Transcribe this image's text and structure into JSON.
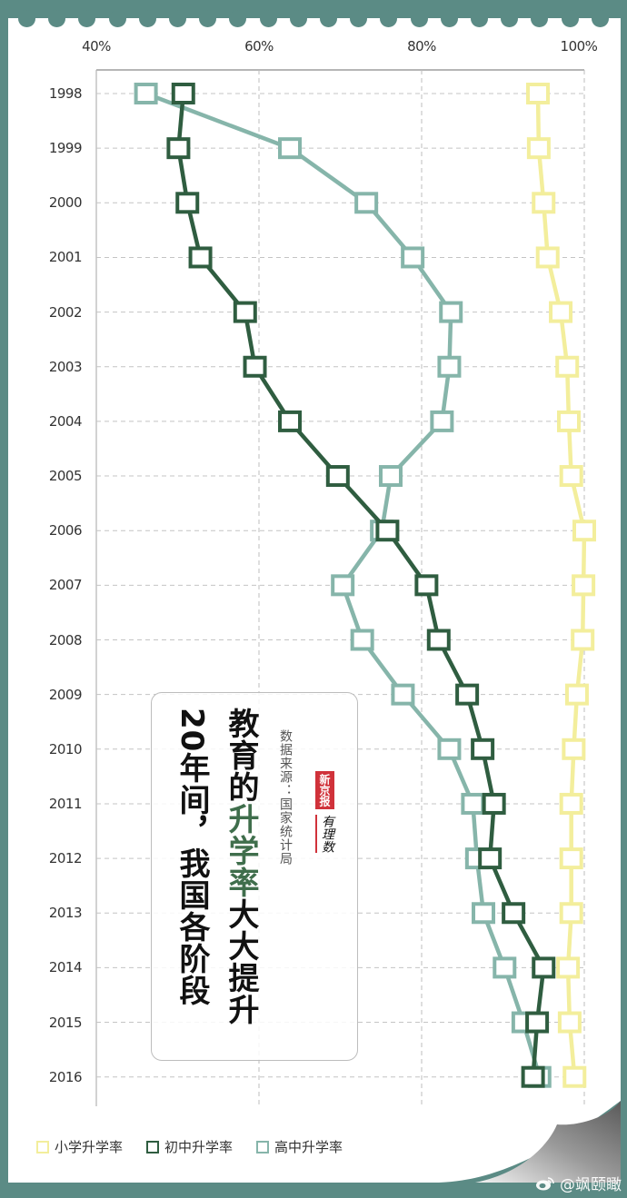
{
  "chart_data": {
    "type": "line",
    "orientation": "horizontal-values-vertical-categories",
    "title": "20年间，我国各阶段教育的升学率大大提升",
    "title_lines": [
      "20年间，我国各阶段",
      "教育的升学率大大提升"
    ],
    "title_highlight": "升学率",
    "source": "数据来源：国家统计局",
    "categories": [
      "1998",
      "1999",
      "2000",
      "2001",
      "2002",
      "2003",
      "2004",
      "2005",
      "2006",
      "2007",
      "2008",
      "2009",
      "2010",
      "2011",
      "2012",
      "2013",
      "2014",
      "2015",
      "2016"
    ],
    "x_ticks": [
      "40%",
      "60%",
      "80%",
      "100%"
    ],
    "xlim": [
      40,
      100
    ],
    "xlabel": "",
    "ylabel": "",
    "grid": true,
    "legend_position": "bottom",
    "series": [
      {
        "name": "小学升学率",
        "color": "#f3ee9c",
        "values": [
          94.3,
          94.4,
          95.0,
          95.5,
          97.1,
          97.9,
          98.1,
          98.4,
          100.0,
          99.9,
          99.8,
          99.1,
          98.7,
          98.4,
          98.4,
          98.4,
          98.0,
          98.2,
          98.8
        ]
      },
      {
        "name": "初中升学率",
        "color": "#2f5d40",
        "values": [
          50.7,
          50.1,
          51.2,
          52.8,
          58.3,
          59.5,
          63.8,
          69.7,
          75.8,
          80.6,
          82.1,
          85.6,
          87.5,
          88.9,
          88.4,
          91.3,
          95.0,
          94.2,
          93.7
        ]
      },
      {
        "name": "高中升学率",
        "color": "#86b5aa",
        "values": [
          46.1,
          63.8,
          73.2,
          78.9,
          83.6,
          83.4,
          82.5,
          76.2,
          75.1,
          70.3,
          72.7,
          77.7,
          83.4,
          86.3,
          86.8,
          87.6,
          90.2,
          92.5,
          94.5
        ]
      }
    ]
  },
  "titlebox": {
    "col1_pre": "教育的",
    "col1_hl": "升学率",
    "col1_post": "大大提升",
    "col2": "20年间，我国各阶段",
    "source": "数据来源：国家统计局",
    "logo_top": "新京报",
    "logo_bottom": "有理数"
  },
  "legend": [
    {
      "label": "小学升学率",
      "color": "#f3ee9c"
    },
    {
      "label": "初中升学率",
      "color": "#2f5d40"
    },
    {
      "label": "高中升学率",
      "color": "#86b5aa"
    }
  ],
  "watermark": "@飒颐瞰",
  "colors": {
    "border": "#5b8b85",
    "paper": "#ffffff",
    "grid": "#bbbbbb",
    "highlight": "#3f6e4c"
  }
}
